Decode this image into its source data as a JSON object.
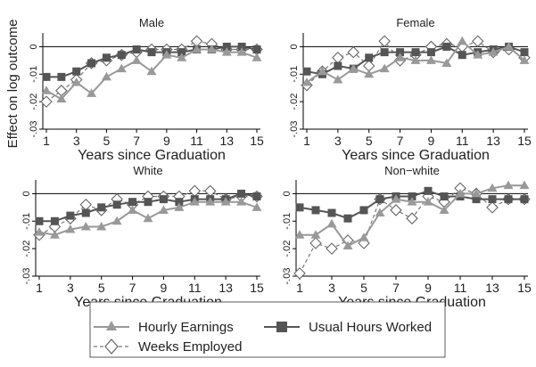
{
  "y_axis_label": "Effect on log outcome",
  "x_axis_label": "Years since Graduation",
  "legend": {
    "hourly": "Hourly Earnings",
    "hours": "Usual Hours Worked",
    "weeks": "Weeks Employed"
  },
  "colors": {
    "hourly": "#999999",
    "hours": "#555555",
    "weeks_fill": "#ffffff",
    "weeks_stroke": "#666666",
    "axis": "#000000",
    "zero_line": "#000000",
    "panel_bg": "#ffffff"
  },
  "chart_data": [
    {
      "type": "line",
      "title": "Male",
      "xlabel": "Years since Graduation",
      "ylabel": "Effect on log outcome",
      "xlim": [
        1,
        15
      ],
      "ylim": [
        -0.03,
        0.005
      ],
      "x_ticks": [
        1,
        3,
        5,
        7,
        9,
        11,
        13,
        15
      ],
      "y_ticks": [
        0,
        -0.01,
        -0.02,
        -0.03
      ],
      "y_tick_labels": [
        "0",
        "-.01",
        "-.02",
        "-.03"
      ],
      "x": [
        1,
        2,
        3,
        4,
        5,
        6,
        7,
        8,
        9,
        10,
        11,
        12,
        13,
        14,
        15
      ],
      "series": [
        {
          "key": "hourly",
          "name": "Hourly Earnings",
          "marker": "triangle",
          "values": [
            -0.016,
            -0.019,
            -0.013,
            -0.017,
            -0.011,
            -0.008,
            -0.005,
            -0.009,
            -0.003,
            -0.004,
            -0.001,
            -0.001,
            -0.002,
            -0.002,
            -0.004
          ]
        },
        {
          "key": "hours",
          "name": "Usual Hours Worked",
          "marker": "square",
          "values": [
            -0.011,
            -0.011,
            -0.009,
            -0.006,
            -0.004,
            -0.003,
            -0.001,
            -0.002,
            -0.002,
            -0.002,
            -0.001,
            -0.001,
            0.0,
            0.0,
            -0.001
          ]
        },
        {
          "key": "weeks",
          "name": "Weeks Employed",
          "marker": "diamond",
          "values": [
            -0.02,
            -0.016,
            -0.012,
            -0.006,
            -0.005,
            -0.003,
            -0.002,
            -0.001,
            -0.001,
            -0.001,
            0.002,
            0.001,
            -0.001,
            -0.001,
            -0.001
          ]
        }
      ]
    },
    {
      "type": "line",
      "title": "Female",
      "xlabel": "Years since Graduation",
      "ylabel": "Effect on log outcome",
      "xlim": [
        1,
        15
      ],
      "ylim": [
        -0.03,
        0.005
      ],
      "x_ticks": [
        1,
        3,
        5,
        7,
        9,
        11,
        13,
        15
      ],
      "y_ticks": [
        0,
        -0.01,
        -0.02,
        -0.03
      ],
      "y_tick_labels": [
        "0",
        "-.01",
        "-.02",
        "-.03"
      ],
      "x": [
        1,
        2,
        3,
        4,
        5,
        6,
        7,
        8,
        9,
        10,
        11,
        12,
        13,
        14,
        15
      ],
      "series": [
        {
          "key": "hourly",
          "name": "Hourly Earnings",
          "marker": "triangle",
          "values": [
            -0.013,
            -0.009,
            -0.012,
            -0.008,
            -0.01,
            -0.008,
            -0.004,
            -0.005,
            -0.005,
            -0.006,
            0.002,
            -0.003,
            -0.002,
            0.0,
            -0.005
          ]
        },
        {
          "key": "hours",
          "name": "Usual Hours Worked",
          "marker": "square",
          "values": [
            -0.009,
            -0.01,
            -0.007,
            -0.008,
            -0.004,
            -0.002,
            -0.002,
            -0.002,
            -0.002,
            0.0,
            -0.003,
            -0.002,
            -0.001,
            0.0,
            -0.002
          ]
        },
        {
          "key": "weeks",
          "name": "Weeks Employed",
          "marker": "diamond",
          "values": [
            -0.014,
            -0.009,
            -0.004,
            -0.002,
            -0.007,
            0.002,
            -0.005,
            -0.003,
            0.0,
            0.001,
            0.0,
            0.002,
            -0.002,
            -0.001,
            -0.004
          ]
        }
      ]
    },
    {
      "type": "line",
      "title": "White",
      "xlabel": "Years since Graduation",
      "ylabel": "Effect on log outcome",
      "xlim": [
        1,
        15
      ],
      "ylim": [
        -0.03,
        0.005
      ],
      "x_ticks": [
        1,
        3,
        5,
        7,
        9,
        11,
        13,
        15
      ],
      "y_ticks": [
        0,
        -0.01,
        -0.02,
        -0.03
      ],
      "y_tick_labels": [
        "0",
        "-.01",
        "-.02",
        "-.03"
      ],
      "x": [
        1,
        2,
        3,
        4,
        5,
        6,
        7,
        8,
        9,
        10,
        11,
        12,
        13,
        14,
        15
      ],
      "series": [
        {
          "key": "hourly",
          "name": "Hourly Earnings",
          "marker": "triangle",
          "values": [
            -0.014,
            -0.015,
            -0.013,
            -0.012,
            -0.012,
            -0.01,
            -0.006,
            -0.009,
            -0.006,
            -0.005,
            -0.003,
            -0.003,
            -0.003,
            -0.003,
            -0.005
          ]
        },
        {
          "key": "hours",
          "name": "Usual Hours Worked",
          "marker": "square",
          "values": [
            -0.01,
            -0.01,
            -0.008,
            -0.007,
            -0.005,
            -0.004,
            -0.003,
            -0.003,
            -0.002,
            -0.003,
            -0.002,
            -0.002,
            -0.002,
            0.0,
            -0.001
          ]
        },
        {
          "key": "weeks",
          "name": "Weeks Employed",
          "marker": "diamond",
          "values": [
            -0.015,
            -0.012,
            -0.009,
            -0.004,
            -0.006,
            -0.002,
            -0.004,
            -0.001,
            -0.001,
            -0.001,
            0.001,
            0.001,
            -0.002,
            -0.001,
            -0.001
          ]
        }
      ]
    },
    {
      "type": "line",
      "title": "Non−white",
      "xlabel": "Years since Graduation",
      "ylabel": "Effect on log outcome",
      "xlim": [
        1,
        15
      ],
      "ylim": [
        -0.03,
        0.005
      ],
      "x_ticks": [
        1,
        3,
        5,
        7,
        9,
        11,
        13,
        15
      ],
      "y_ticks": [
        0,
        -0.01,
        -0.02,
        -0.03
      ],
      "y_tick_labels": [
        "0",
        "-.01",
        "-.02",
        "-.03"
      ],
      "x": [
        1,
        2,
        3,
        4,
        5,
        6,
        7,
        8,
        9,
        10,
        11,
        12,
        13,
        14,
        15
      ],
      "series": [
        {
          "key": "hourly",
          "name": "Hourly Earnings",
          "marker": "triangle",
          "values": [
            -0.015,
            -0.015,
            -0.011,
            -0.019,
            -0.016,
            -0.007,
            -0.002,
            -0.003,
            -0.003,
            -0.006,
            0.0,
            0.0,
            0.002,
            0.003,
            0.003
          ]
        },
        {
          "key": "hours",
          "name": "Usual Hours Worked",
          "marker": "square",
          "values": [
            -0.005,
            -0.006,
            -0.007,
            -0.009,
            -0.006,
            -0.002,
            -0.001,
            -0.001,
            0.001,
            -0.001,
            -0.001,
            -0.002,
            -0.002,
            -0.002,
            -0.002
          ]
        },
        {
          "key": "weeks",
          "name": "Weeks Employed",
          "marker": "diamond",
          "values": [
            -0.029,
            -0.018,
            -0.02,
            -0.017,
            -0.018,
            -0.002,
            -0.006,
            -0.009,
            -0.001,
            -0.003,
            0.002,
            0.0,
            -0.005,
            -0.002,
            -0.002
          ]
        }
      ]
    }
  ]
}
